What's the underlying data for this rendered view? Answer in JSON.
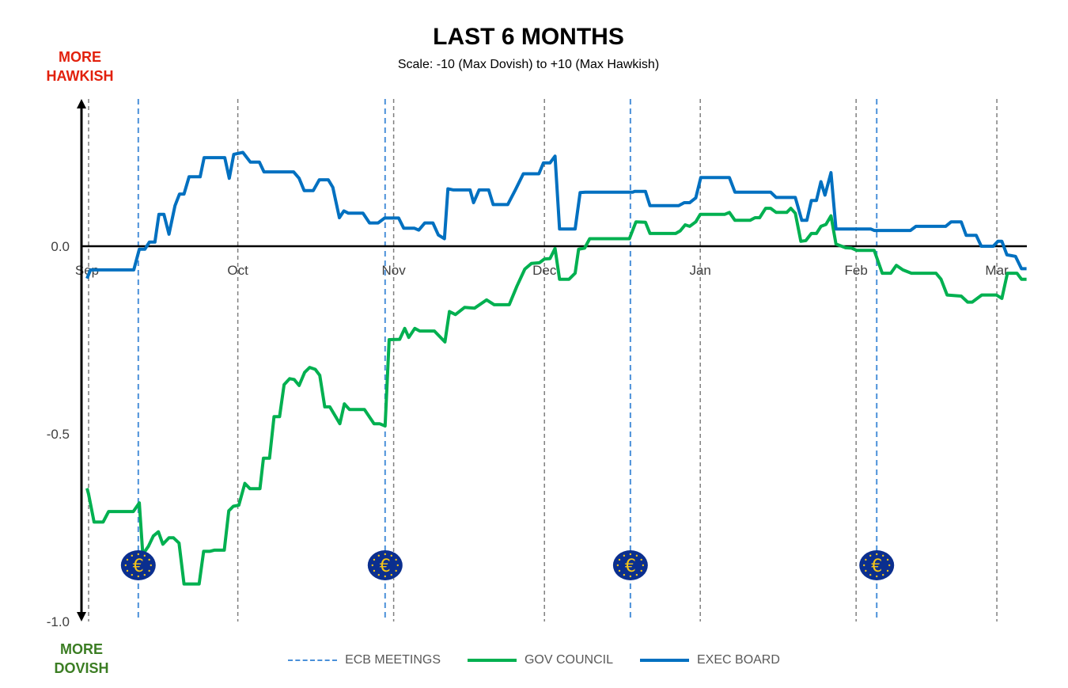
{
  "chart_data": {
    "type": "line",
    "title": "LAST 6 MONTHS",
    "subtitle": "Scale: -10 (Max Dovish)  to +10 (Max Hawkish)",
    "top_label": [
      "MORE",
      "HAWKISH"
    ],
    "bottom_label": [
      "MORE",
      "DOVISH"
    ],
    "x_unit": "days since Sep 1",
    "x_ticks": [
      {
        "label": "Sep",
        "x": 0
      },
      {
        "label": "Oct",
        "x": 30
      },
      {
        "label": "Nov",
        "x": 61
      },
      {
        "label": "Dec",
        "x": 91
      },
      {
        "label": "Jan",
        "x": 122
      },
      {
        "label": "Feb",
        "x": 153
      },
      {
        "label": "Mar",
        "x": 181
      }
    ],
    "xlim": [
      0,
      187
    ],
    "y_ticks": [
      {
        "label": "0.0",
        "y": 0
      },
      {
        "label": "-0.5",
        "y": -0.5
      },
      {
        "label": "-1.0",
        "y": -1.0
      }
    ],
    "ylim": [
      -1.0,
      0.39
    ],
    "grid": false,
    "legend_position": "bottom",
    "ecb_meetings": {
      "name": "ECB MEETINGS",
      "color": "#4a90d9",
      "x": [
        10.2,
        59.3,
        108.1,
        157.1
      ],
      "icon": "euro-icon"
    },
    "series": [
      {
        "name": "GOV COUNCIL",
        "color": "#00b050",
        "points": [
          [
            0,
            -0.645
          ],
          [
            0.3,
            -0.66
          ],
          [
            1.4,
            -0.735
          ],
          [
            3.2,
            -0.735
          ],
          [
            4.3,
            -0.707
          ],
          [
            9.2,
            -0.707
          ],
          [
            10.4,
            -0.684
          ],
          [
            11.1,
            -0.821
          ],
          [
            12.2,
            -0.8
          ],
          [
            13.2,
            -0.772
          ],
          [
            14.2,
            -0.761
          ],
          [
            15.1,
            -0.794
          ],
          [
            16.3,
            -0.777
          ],
          [
            17.2,
            -0.777
          ],
          [
            18.3,
            -0.791
          ],
          [
            19.3,
            -0.9
          ],
          [
            22.3,
            -0.9
          ],
          [
            23.2,
            -0.813
          ],
          [
            24.4,
            -0.813
          ],
          [
            25.3,
            -0.81
          ],
          [
            27.3,
            -0.81
          ],
          [
            28.2,
            -0.705
          ],
          [
            29.1,
            -0.693
          ],
          [
            30.2,
            -0.69
          ],
          [
            31.4,
            -0.632
          ],
          [
            32.4,
            -0.646
          ],
          [
            34.4,
            -0.646
          ],
          [
            35.1,
            -0.565
          ],
          [
            36.3,
            -0.565
          ],
          [
            37.2,
            -0.454
          ],
          [
            38.3,
            -0.454
          ],
          [
            39.2,
            -0.369
          ],
          [
            40.3,
            -0.353
          ],
          [
            41.2,
            -0.355
          ],
          [
            42.2,
            -0.371
          ],
          [
            43.3,
            -0.336
          ],
          [
            44.3,
            -0.323
          ],
          [
            45.4,
            -0.328
          ],
          [
            46.3,
            -0.344
          ],
          [
            47.3,
            -0.428
          ],
          [
            48.3,
            -0.428
          ],
          [
            50.3,
            -0.473
          ],
          [
            51.2,
            -0.42
          ],
          [
            52.2,
            -0.435
          ],
          [
            55.2,
            -0.435
          ],
          [
            57.1,
            -0.473
          ],
          [
            58.2,
            -0.473
          ],
          [
            59.3,
            -0.479
          ],
          [
            60.1,
            -0.249
          ],
          [
            62.2,
            -0.248
          ],
          [
            63.2,
            -0.219
          ],
          [
            64.0,
            -0.243
          ],
          [
            65.2,
            -0.219
          ],
          [
            66.2,
            -0.226
          ],
          [
            69.1,
            -0.226
          ],
          [
            71.2,
            -0.255
          ],
          [
            72.1,
            -0.174
          ],
          [
            73.3,
            -0.182
          ],
          [
            75.1,
            -0.163
          ],
          [
            77.1,
            -0.165
          ],
          [
            79.5,
            -0.143
          ],
          [
            81.0,
            -0.156
          ],
          [
            84.0,
            -0.156
          ],
          [
            85.5,
            -0.107
          ],
          [
            87.1,
            -0.061
          ],
          [
            88.4,
            -0.046
          ],
          [
            90.0,
            -0.044
          ],
          [
            91.0,
            -0.034
          ],
          [
            92.1,
            -0.033
          ],
          [
            93.1,
            -0.006
          ],
          [
            94.0,
            -0.088
          ],
          [
            95.9,
            -0.088
          ],
          [
            97.1,
            -0.072
          ],
          [
            97.8,
            -0.008
          ],
          [
            99.0,
            -0.005
          ],
          [
            100.0,
            0.02
          ],
          [
            107.9,
            0.02
          ],
          [
            109.2,
            0.065
          ],
          [
            111.1,
            0.064
          ],
          [
            112.0,
            0.034
          ],
          [
            117.1,
            0.034
          ],
          [
            118.0,
            0.041
          ],
          [
            119.0,
            0.057
          ],
          [
            119.9,
            0.053
          ],
          [
            121.1,
            0.065
          ],
          [
            122.0,
            0.085
          ],
          [
            126.9,
            0.085
          ],
          [
            127.8,
            0.09
          ],
          [
            128.9,
            0.069
          ],
          [
            131.9,
            0.069
          ],
          [
            132.9,
            0.076
          ],
          [
            133.8,
            0.076
          ],
          [
            135.0,
            0.101
          ],
          [
            136.0,
            0.101
          ],
          [
            137.1,
            0.09
          ],
          [
            139.2,
            0.09
          ],
          [
            140.0,
            0.101
          ],
          [
            140.9,
            0.088
          ],
          [
            142.0,
            0.013
          ],
          [
            143.0,
            0.015
          ],
          [
            144.1,
            0.034
          ],
          [
            145.1,
            0.034
          ],
          [
            146.0,
            0.053
          ],
          [
            147.0,
            0.058
          ],
          [
            148.0,
            0.081
          ],
          [
            149.0,
            0.006
          ],
          [
            150.9,
            -0.004
          ],
          [
            152.1,
            -0.005
          ],
          [
            153.1,
            -0.011
          ],
          [
            156.6,
            -0.011
          ],
          [
            158.2,
            -0.072
          ],
          [
            159.9,
            -0.072
          ],
          [
            161.0,
            -0.051
          ],
          [
            162.3,
            -0.063
          ],
          [
            164.0,
            -0.072
          ],
          [
            168.9,
            -0.072
          ],
          [
            169.9,
            -0.088
          ],
          [
            171.1,
            -0.13
          ],
          [
            173.9,
            -0.133
          ],
          [
            175.2,
            -0.149
          ],
          [
            176.1,
            -0.149
          ],
          [
            178.0,
            -0.13
          ],
          [
            180.9,
            -0.13
          ],
          [
            182.0,
            -0.139
          ],
          [
            183.1,
            -0.072
          ],
          [
            185.0,
            -0.072
          ],
          [
            185.9,
            -0.088
          ],
          [
            186.9,
            -0.088
          ]
        ]
      },
      {
        "name": "EXEC BOARD",
        "color": "#0070c0",
        "points": [
          [
            0,
            -0.086
          ],
          [
            0.7,
            -0.063
          ],
          [
            9.3,
            -0.063
          ],
          [
            10.4,
            -0.008
          ],
          [
            11.5,
            -0.008
          ],
          [
            12.4,
            0.011
          ],
          [
            13.5,
            0.011
          ],
          [
            14.3,
            0.085
          ],
          [
            15.3,
            0.085
          ],
          [
            16.3,
            0.032
          ],
          [
            17.5,
            0.108
          ],
          [
            18.4,
            0.139
          ],
          [
            19.3,
            0.139
          ],
          [
            20.3,
            0.185
          ],
          [
            22.5,
            0.185
          ],
          [
            23.3,
            0.236
          ],
          [
            27.4,
            0.236
          ],
          [
            28.3,
            0.181
          ],
          [
            29.2,
            0.245
          ],
          [
            31.0,
            0.25
          ],
          [
            32.5,
            0.224
          ],
          [
            34.3,
            0.224
          ],
          [
            35.2,
            0.198
          ],
          [
            41.1,
            0.198
          ],
          [
            42.2,
            0.181
          ],
          [
            43.2,
            0.148
          ],
          [
            45.0,
            0.148
          ],
          [
            46.2,
            0.177
          ],
          [
            48.0,
            0.177
          ],
          [
            48.9,
            0.157
          ],
          [
            50.2,
            0.076
          ],
          [
            51.1,
            0.094
          ],
          [
            52.0,
            0.088
          ],
          [
            54.9,
            0.088
          ],
          [
            56.2,
            0.062
          ],
          [
            57.9,
            0.062
          ],
          [
            59.2,
            0.075
          ],
          [
            62.0,
            0.075
          ],
          [
            63.0,
            0.048
          ],
          [
            65.1,
            0.048
          ],
          [
            66.0,
            0.043
          ],
          [
            67.2,
            0.062
          ],
          [
            68.8,
            0.062
          ],
          [
            69.9,
            0.03
          ],
          [
            71.1,
            0.02
          ],
          [
            71.8,
            0.153
          ],
          [
            72.9,
            0.15
          ],
          [
            76.2,
            0.15
          ],
          [
            76.9,
            0.116
          ],
          [
            78.0,
            0.15
          ],
          [
            79.9,
            0.15
          ],
          [
            80.8,
            0.111
          ],
          [
            83.7,
            0.111
          ],
          [
            85.2,
            0.15
          ],
          [
            86.8,
            0.193
          ],
          [
            89.9,
            0.193
          ],
          [
            90.8,
            0.222
          ],
          [
            92.1,
            0.222
          ],
          [
            93.1,
            0.24
          ],
          [
            94.0,
            0.046
          ],
          [
            97.1,
            0.046
          ],
          [
            98.1,
            0.143
          ],
          [
            99.1,
            0.144
          ],
          [
            108.6,
            0.144
          ],
          [
            108.9,
            0.146
          ],
          [
            111.1,
            0.146
          ],
          [
            112.0,
            0.108
          ],
          [
            117.7,
            0.108
          ],
          [
            118.8,
            0.116
          ],
          [
            119.9,
            0.116
          ],
          [
            121.1,
            0.129
          ],
          [
            122.1,
            0.183
          ],
          [
            127.8,
            0.183
          ],
          [
            128.9,
            0.144
          ],
          [
            136.0,
            0.144
          ],
          [
            137.1,
            0.13
          ],
          [
            140.9,
            0.13
          ],
          [
            142.2,
            0.069
          ],
          [
            143.2,
            0.069
          ],
          [
            144.1,
            0.122
          ],
          [
            145.1,
            0.122
          ],
          [
            146.0,
            0.172
          ],
          [
            146.8,
            0.136
          ],
          [
            148.0,
            0.196
          ],
          [
            149.0,
            0.046
          ],
          [
            155.9,
            0.046
          ],
          [
            156.6,
            0.042
          ],
          [
            163.8,
            0.042
          ],
          [
            164.9,
            0.053
          ],
          [
            170.8,
            0.053
          ],
          [
            171.9,
            0.065
          ],
          [
            173.9,
            0.065
          ],
          [
            174.9,
            0.029
          ],
          [
            176.9,
            0.029
          ],
          [
            177.9,
            0.0
          ],
          [
            180.3,
            0.0
          ],
          [
            181.2,
            0.013
          ],
          [
            182.0,
            0.013
          ],
          [
            183.0,
            -0.023
          ],
          [
            184.7,
            -0.027
          ],
          [
            185.9,
            -0.06
          ],
          [
            186.9,
            -0.06
          ]
        ]
      }
    ]
  }
}
